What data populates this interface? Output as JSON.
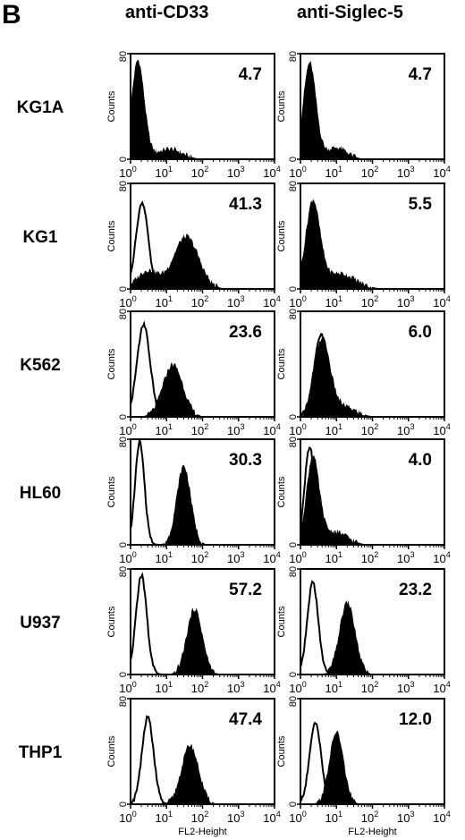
{
  "figure": {
    "panel_letter": "B",
    "columns": [
      "anti-CD33",
      "anti-Siglec-5"
    ],
    "row_labels": [
      "KG1A",
      "KG1",
      "K562",
      "HL60",
      "U937",
      "THP1"
    ],
    "y_axis_label": "Counts",
    "x_axis_label": "FL2-Height",
    "colors": {
      "fill": "#000000",
      "outline": "#000000",
      "background": "#ffffff"
    }
  },
  "chart_data": {
    "type": "area",
    "description_of_axes": "log10 fluorescence (FL2) on x, cell counts on y",
    "x_scale": "log",
    "xlim": [
      1,
      10000
    ],
    "ylim": [
      0,
      80
    ],
    "y_ticks": [
      0,
      80
    ],
    "x_ticks": [
      {
        "mantissa": "10",
        "exponent": "0"
      },
      {
        "mantissa": "10",
        "exponent": "1"
      },
      {
        "mantissa": "10",
        "exponent": "2"
      },
      {
        "mantissa": "10",
        "exponent": "3"
      },
      {
        "mantissa": "10",
        "exponent": "4"
      }
    ],
    "panels": [
      {
        "row": "KG1A",
        "column": "anti-CD33",
        "value": "4.7",
        "show_x_label": false,
        "filled": {
          "peaks": [
            {
              "x": 1.6,
              "h": 75,
              "w": 0.18
            },
            {
              "x": 12,
              "h": 8,
              "w": 0.35
            }
          ]
        },
        "control": null
      },
      {
        "row": "KG1A",
        "column": "anti-Siglec-5",
        "value": "4.7",
        "show_x_label": false,
        "filled": {
          "peaks": [
            {
              "x": 1.8,
              "h": 73,
              "w": 0.18
            },
            {
              "x": 10,
              "h": 9,
              "w": 0.3
            }
          ]
        },
        "control": null
      },
      {
        "row": "KG1",
        "column": "anti-CD33",
        "value": "41.3",
        "show_x_label": false,
        "filled": {
          "peaks": [
            {
              "x": 3,
              "h": 14,
              "w": 0.3
            },
            {
              "x": 35,
              "h": 40,
              "w": 0.35
            }
          ]
        },
        "control": {
          "peaks": [
            {
              "x": 2.1,
              "h": 65,
              "w": 0.17
            }
          ]
        }
      },
      {
        "row": "KG1",
        "column": "anti-Siglec-5",
        "value": "5.5",
        "show_x_label": false,
        "filled": {
          "peaks": [
            {
              "x": 2.2,
              "h": 65,
              "w": 0.2
            },
            {
              "x": 12,
              "h": 12,
              "w": 0.45
            }
          ]
        },
        "control": null
      },
      {
        "row": "K562",
        "column": "anti-CD33",
        "value": "23.6",
        "show_x_label": false,
        "filled": {
          "peaks": [
            {
              "x": 15,
              "h": 40,
              "w": 0.28
            }
          ]
        },
        "control": {
          "peaks": [
            {
              "x": 2.3,
              "h": 70,
              "w": 0.18
            }
          ]
        }
      },
      {
        "row": "K562",
        "column": "anti-Siglec-5",
        "value": "6.0",
        "show_x_label": false,
        "filled": {
          "peaks": [
            {
              "x": 4,
              "h": 58,
              "w": 0.22
            },
            {
              "x": 15,
              "h": 8,
              "w": 0.35
            }
          ]
        },
        "control": {
          "peaks": [
            {
              "x": 3.8,
              "h": 62,
              "w": 0.2
            }
          ]
        }
      },
      {
        "row": "HL60",
        "column": "anti-CD33",
        "value": "30.3",
        "show_x_label": false,
        "filled": {
          "peaks": [
            {
              "x": 30,
              "h": 60,
              "w": 0.2
            }
          ]
        },
        "control": {
          "peaks": [
            {
              "x": 1.8,
              "h": 78,
              "w": 0.13
            }
          ]
        }
      },
      {
        "row": "HL60",
        "column": "anti-Siglec-5",
        "value": "4.0",
        "show_x_label": false,
        "filled": {
          "peaks": [
            {
              "x": 2.2,
              "h": 66,
              "w": 0.18
            },
            {
              "x": 9,
              "h": 10,
              "w": 0.35
            }
          ]
        },
        "control": {
          "peaks": [
            {
              "x": 1.8,
              "h": 74,
              "w": 0.14
            }
          ]
        }
      },
      {
        "row": "U937",
        "column": "anti-CD33",
        "value": "57.2",
        "show_x_label": false,
        "filled": {
          "peaks": [
            {
              "x": 60,
              "h": 50,
              "w": 0.22
            }
          ]
        },
        "control": {
          "peaks": [
            {
              "x": 2,
              "h": 75,
              "w": 0.15
            }
          ]
        }
      },
      {
        "row": "U937",
        "column": "anti-Siglec-5",
        "value": "23.2",
        "show_x_label": false,
        "filled": {
          "peaks": [
            {
              "x": 20,
              "h": 55,
              "w": 0.22
            }
          ]
        },
        "control": {
          "peaks": [
            {
              "x": 2.2,
              "h": 70,
              "w": 0.15
            }
          ]
        }
      },
      {
        "row": "THP1",
        "column": "anti-CD33",
        "value": "47.4",
        "show_x_label": true,
        "filled": {
          "peaks": [
            {
              "x": 45,
              "h": 45,
              "w": 0.24
            }
          ]
        },
        "control": {
          "peaks": [
            {
              "x": 3,
              "h": 66,
              "w": 0.16
            }
          ]
        }
      },
      {
        "row": "THP1",
        "column": "anti-Siglec-5",
        "value": "12.0",
        "show_x_label": true,
        "filled": {
          "peaks": [
            {
              "x": 10,
              "h": 55,
              "w": 0.2
            }
          ]
        },
        "control": {
          "peaks": [
            {
              "x": 2.6,
              "h": 62,
              "w": 0.16
            }
          ]
        }
      }
    ]
  }
}
